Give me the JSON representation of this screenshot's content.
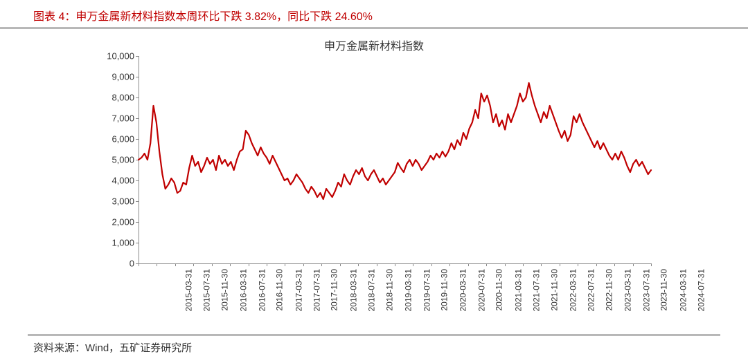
{
  "figure_label": "图表 4：申万金属新材料指数本周环比下跌 3.82%，同比下跌 24.60%",
  "source_text": "资料来源：Wind，五矿证券研究所",
  "chart": {
    "type": "line",
    "title": "申万金属新材料指数",
    "title_fontsize": 16,
    "title_color": "#333333",
    "line_color": "#c00000",
    "line_width": 2.2,
    "background_color": "#ffffff",
    "axis_color": "#888888",
    "tick_font_color": "#333333",
    "tick_fontsize": 13,
    "xlabel_rotation": -90,
    "ylim": [
      0,
      10000
    ],
    "ytick_step": 1000,
    "yticks": [
      0,
      1000,
      2000,
      3000,
      4000,
      5000,
      6000,
      7000,
      8000,
      9000,
      10000
    ],
    "ytick_labels": [
      "0",
      "1,000",
      "2,000",
      "3,000",
      "4,000",
      "5,000",
      "6,000",
      "7,000",
      "8,000",
      "9,000",
      "10,000"
    ],
    "x_labels": [
      "2015-03-31",
      "2015-07-31",
      "2015-11-30",
      "2016-03-31",
      "2016-07-31",
      "2016-11-30",
      "2017-03-31",
      "2017-07-31",
      "2017-11-30",
      "2018-03-31",
      "2018-07-31",
      "2018-11-30",
      "2019-03-31",
      "2019-07-31",
      "2019-11-30",
      "2020-03-31",
      "2020-07-31",
      "2020-11-30",
      "2021-03-31",
      "2021-07-31",
      "2021-11-30",
      "2022-03-31",
      "2022-07-31",
      "2022-11-30",
      "2023-03-31",
      "2023-07-31",
      "2023-11-30",
      "2024-03-31",
      "2024-07-31"
    ],
    "series": {
      "values": [
        5000,
        5100,
        5300,
        5000,
        5800,
        7600,
        6800,
        5400,
        4300,
        3600,
        3800,
        4100,
        3900,
        3400,
        3500,
        3900,
        3800,
        4600,
        5200,
        4700,
        4900,
        4400,
        4700,
        5100,
        4800,
        5000,
        4500,
        5200,
        4800,
        5000,
        4700,
        4900,
        4500,
        5000,
        5400,
        5500,
        6400,
        6200,
        5800,
        5500,
        5200,
        5600,
        5300,
        5100,
        4800,
        5200,
        4900,
        4600,
        4300,
        4000,
        4100,
        3800,
        4000,
        4300,
        4100,
        3900,
        3600,
        3400,
        3700,
        3500,
        3200,
        3400,
        3100,
        3600,
        3400,
        3200,
        3500,
        3900,
        3700,
        4300,
        4000,
        3800,
        4200,
        4500,
        4300,
        4600,
        4200,
        4000,
        4300,
        4500,
        4200,
        3900,
        4100,
        3800,
        4000,
        4200,
        4400,
        4850,
        4600,
        4400,
        4800,
        5000,
        4700,
        5000,
        4800,
        4500,
        4700,
        4900,
        5200,
        5000,
        5300,
        5100,
        5400,
        5150,
        5400,
        5800,
        5500,
        5950,
        5700,
        6300,
        6000,
        6500,
        6800,
        7400,
        7000,
        8200,
        7800,
        8100,
        7600,
        6800,
        7200,
        6600,
        6900,
        6450,
        7200,
        6800,
        7200,
        7600,
        8200,
        7800,
        8000,
        8700,
        8100,
        7600,
        7200,
        6800,
        7300,
        7000,
        7600,
        7200,
        6800,
        6400,
        6050,
        6400,
        5900,
        6200,
        7100,
        6800,
        7200,
        6800,
        6500,
        6200,
        5900,
        5600,
        5900,
        5500,
        5800,
        5500,
        5200,
        5000,
        5300,
        5000,
        5400,
        5100,
        4700,
        4400,
        4800,
        5000,
        4700,
        4900,
        4600,
        4300,
        4500
      ]
    }
  }
}
